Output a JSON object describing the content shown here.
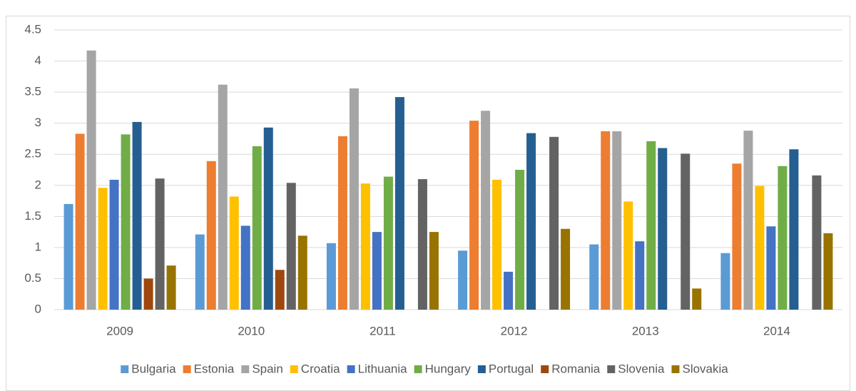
{
  "chart_data": {
    "type": "bar",
    "categories": [
      "2009",
      "2010",
      "2011",
      "2012",
      "2013",
      "2014"
    ],
    "series": [
      {
        "name": "Bulgaria",
        "color": "#5b9bd5",
        "values": [
          1.7,
          1.21,
          1.07,
          0.95,
          1.05,
          0.91
        ]
      },
      {
        "name": "Estonia",
        "color": "#ed7d31",
        "values": [
          2.83,
          2.39,
          2.79,
          3.04,
          2.87,
          2.35
        ]
      },
      {
        "name": "Spain",
        "color": "#a5a5a5",
        "values": [
          4.17,
          3.62,
          3.56,
          3.2,
          2.87,
          2.88
        ]
      },
      {
        "name": "Croatia",
        "color": "#ffc000",
        "values": [
          1.96,
          1.82,
          2.03,
          2.09,
          1.74,
          1.99
        ]
      },
      {
        "name": "Lithuania",
        "color": "#4472c4",
        "values": [
          2.09,
          1.35,
          1.25,
          0.61,
          1.1,
          1.34
        ]
      },
      {
        "name": "Hungary",
        "color": "#70ad47",
        "values": [
          2.82,
          2.63,
          2.14,
          2.25,
          2.71,
          2.31
        ]
      },
      {
        "name": "Portugal",
        "color": "#255e91",
        "values": [
          3.02,
          2.93,
          3.42,
          2.84,
          2.6,
          2.58
        ]
      },
      {
        "name": "Romania",
        "color": "#9e480e",
        "values": [
          0.5,
          0.64,
          null,
          null,
          null,
          null
        ]
      },
      {
        "name": "Slovenia",
        "color": "#636363",
        "values": [
          2.11,
          2.04,
          2.1,
          2.78,
          2.51,
          2.16
        ]
      },
      {
        "name": "Slovakia",
        "color": "#997300",
        "values": [
          0.71,
          1.19,
          1.25,
          1.3,
          0.34,
          1.23
        ]
      }
    ],
    "ylim": [
      0,
      4.5
    ],
    "yticks": [
      0,
      0.5,
      1,
      1.5,
      2,
      2.5,
      3,
      3.5,
      4,
      4.5
    ],
    "grid": true,
    "legend": "bottom"
  }
}
